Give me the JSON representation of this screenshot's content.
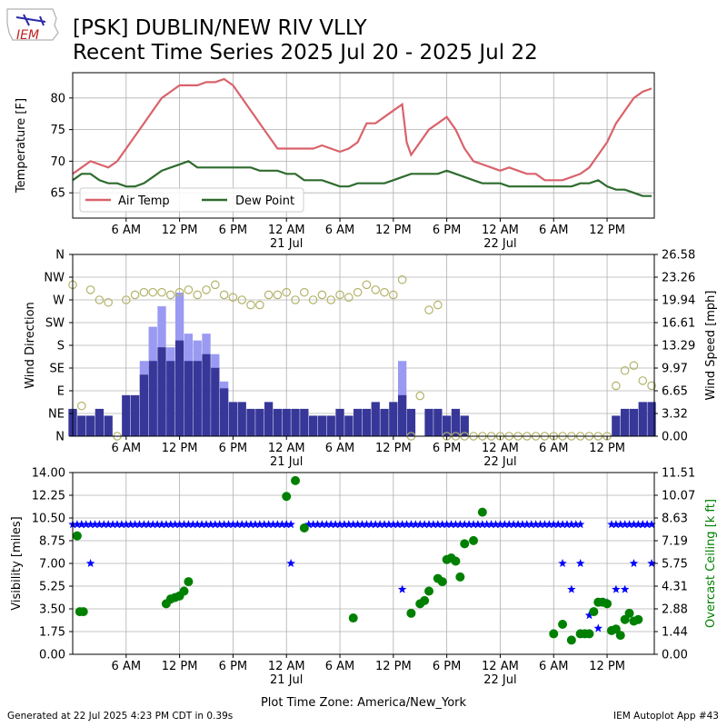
{
  "header": {
    "logo_text": "IEM",
    "title_line1": "[PSK] DUBLIN/NEW RIV VLLY",
    "title_line2": "Recent Time Series 2025 Jul 20 - 2025 Jul 22"
  },
  "footer": {
    "generated": "Generated at 22 Jul 2025 4:23 PM CDT in 0.39s",
    "app": "IEM Autoplot App #43"
  },
  "time_axis": {
    "ticks": [
      {
        "hour": 6,
        "label": "6 AM",
        "sub": ""
      },
      {
        "hour": 12,
        "label": "12 PM",
        "sub": ""
      },
      {
        "hour": 18,
        "label": "6 PM",
        "sub": ""
      },
      {
        "hour": 24,
        "label": "12 AM",
        "sub": "21 Jul"
      },
      {
        "hour": 30,
        "label": "6 AM",
        "sub": ""
      },
      {
        "hour": 36,
        "label": "12 PM",
        "sub": ""
      },
      {
        "hour": 42,
        "label": "6 PM",
        "sub": ""
      },
      {
        "hour": 48,
        "label": "12 AM",
        "sub": "22 Jul"
      },
      {
        "hour": 54,
        "label": "6 AM",
        "sub": ""
      },
      {
        "hour": 60,
        "label": "12 PM",
        "sub": ""
      }
    ],
    "xlim": [
      0,
      65.3
    ],
    "xlabel": "Plot Time Zone: America/New_York"
  },
  "colors": {
    "air_temp": "#d9626b",
    "dew_point": "#2e6b2e",
    "wind_gust": "#9a9af2",
    "wind_speed": "#373799",
    "wind_dir": "#b3b36b",
    "visibility": "#0000ff",
    "ceiling": "#008000",
    "ceiling_axis_label": "#008000"
  },
  "chart_data": [
    {
      "type": "line",
      "ylabel": "Temperature [F]",
      "ylim": [
        61,
        84
      ],
      "yticks": [
        65,
        70,
        75,
        80
      ],
      "grid": true,
      "legend_position": "lower-left",
      "series": [
        {
          "name": "Air Temp",
          "points": [
            [
              0,
              68
            ],
            [
              1,
              69
            ],
            [
              2,
              70
            ],
            [
              3,
              69.5
            ],
            [
              4,
              69
            ],
            [
              5,
              70
            ],
            [
              6,
              72
            ],
            [
              7,
              74
            ],
            [
              8,
              76
            ],
            [
              9,
              78
            ],
            [
              10,
              80
            ],
            [
              11,
              81
            ],
            [
              12,
              82
            ],
            [
              13,
              82
            ],
            [
              14,
              82
            ],
            [
              15,
              82.5
            ],
            [
              16,
              82.5
            ],
            [
              17,
              83
            ],
            [
              18,
              82
            ],
            [
              19,
              80
            ],
            [
              20,
              78
            ],
            [
              21,
              76
            ],
            [
              22,
              74
            ],
            [
              23,
              72
            ],
            [
              24,
              72
            ],
            [
              25,
              72
            ],
            [
              26,
              72
            ],
            [
              27,
              72
            ],
            [
              28,
              72.5
            ],
            [
              29,
              72
            ],
            [
              30,
              71.5
            ],
            [
              31,
              72
            ],
            [
              32,
              73
            ],
            [
              33,
              76
            ],
            [
              34,
              76
            ],
            [
              35,
              77
            ],
            [
              36,
              78
            ],
            [
              37,
              79
            ],
            [
              37.5,
              73
            ],
            [
              38,
              71
            ],
            [
              39,
              73
            ],
            [
              40,
              75
            ],
            [
              41,
              76
            ],
            [
              42,
              77
            ],
            [
              43,
              75
            ],
            [
              44,
              72
            ],
            [
              45,
              70
            ],
            [
              46,
              69.5
            ],
            [
              47,
              69
            ],
            [
              48,
              68.5
            ],
            [
              49,
              69
            ],
            [
              50,
              68.5
            ],
            [
              51,
              68
            ],
            [
              52,
              68
            ],
            [
              53,
              67
            ],
            [
              54,
              67
            ],
            [
              55,
              67
            ],
            [
              56,
              67.5
            ],
            [
              57,
              68
            ],
            [
              58,
              69
            ],
            [
              59,
              71
            ],
            [
              60,
              73
            ],
            [
              61,
              76
            ],
            [
              62,
              78
            ],
            [
              63,
              80
            ],
            [
              64,
              81
            ],
            [
              65,
              81.5
            ]
          ]
        },
        {
          "name": "Dew Point",
          "points": [
            [
              0,
              67
            ],
            [
              1,
              68
            ],
            [
              2,
              68
            ],
            [
              3,
              67
            ],
            [
              4,
              66.5
            ],
            [
              5,
              66.5
            ],
            [
              6,
              66
            ],
            [
              7,
              66
            ],
            [
              8,
              66.5
            ],
            [
              9,
              67.5
            ],
            [
              10,
              68.5
            ],
            [
              11,
              69
            ],
            [
              12,
              69.5
            ],
            [
              13,
              70
            ],
            [
              14,
              69
            ],
            [
              15,
              69
            ],
            [
              16,
              69
            ],
            [
              17,
              69
            ],
            [
              18,
              69
            ],
            [
              19,
              69
            ],
            [
              20,
              69
            ],
            [
              21,
              68.5
            ],
            [
              22,
              68.5
            ],
            [
              23,
              68.5
            ],
            [
              24,
              68
            ],
            [
              25,
              68
            ],
            [
              26,
              67
            ],
            [
              27,
              67
            ],
            [
              28,
              67
            ],
            [
              29,
              66.5
            ],
            [
              30,
              66
            ],
            [
              31,
              66
            ],
            [
              32,
              66.5
            ],
            [
              33,
              66.5
            ],
            [
              34,
              66.5
            ],
            [
              35,
              66.5
            ],
            [
              36,
              67
            ],
            [
              37,
              67.5
            ],
            [
              38,
              68
            ],
            [
              39,
              68
            ],
            [
              40,
              68
            ],
            [
              41,
              68
            ],
            [
              42,
              68.5
            ],
            [
              43,
              68
            ],
            [
              44,
              67.5
            ],
            [
              45,
              67
            ],
            [
              46,
              66.5
            ],
            [
              47,
              66.5
            ],
            [
              48,
              66.5
            ],
            [
              49,
              66
            ],
            [
              50,
              66
            ],
            [
              51,
              66
            ],
            [
              52,
              66
            ],
            [
              53,
              66
            ],
            [
              54,
              66
            ],
            [
              55,
              66
            ],
            [
              56,
              66
            ],
            [
              57,
              66.5
            ],
            [
              58,
              66.5
            ],
            [
              59,
              67
            ],
            [
              60,
              66
            ],
            [
              61,
              65.5
            ],
            [
              62,
              65.5
            ],
            [
              63,
              65
            ],
            [
              64,
              64.5
            ],
            [
              65,
              64.5
            ]
          ]
        }
      ]
    },
    {
      "type": "bar",
      "ylabel_left": "Wind Direction",
      "ylabel_right": "Wind Speed [mph]",
      "direction_ticks": [
        "N",
        "NE",
        "E",
        "SE",
        "S",
        "SW",
        "W",
        "NW",
        "N"
      ],
      "speed_ticks": [
        "0.00",
        "3.32",
        "6.65",
        "9.97",
        "13.29",
        "16.61",
        "19.94",
        "23.26",
        "26.58"
      ],
      "speed_ylim": [
        0,
        26.58
      ],
      "grid": true,
      "x_hours": [
        0,
        1,
        2,
        3,
        4,
        5,
        6,
        7,
        8,
        9,
        10,
        11,
        12,
        13,
        14,
        15,
        16,
        17,
        18,
        19,
        20,
        21,
        22,
        23,
        24,
        25,
        26,
        27,
        28,
        29,
        30,
        31,
        32,
        33,
        34,
        35,
        36,
        37,
        38,
        39,
        40,
        41,
        42,
        43,
        44,
        45,
        46,
        47,
        48,
        49,
        50,
        51,
        52,
        53,
        54,
        55,
        56,
        57,
        58,
        59,
        60,
        61,
        62,
        63,
        64,
        65
      ],
      "speed_mph": [
        4,
        3,
        3,
        4,
        3,
        0,
        6,
        6,
        9,
        11,
        13,
        11,
        14,
        11,
        11,
        12,
        10,
        7,
        5,
        5,
        4,
        4,
        5,
        4,
        4,
        4,
        4,
        3,
        3,
        3,
        4,
        3,
        4,
        4,
        5,
        4,
        5,
        6,
        4,
        0,
        4,
        4,
        3,
        4,
        3,
        0,
        0,
        0,
        0,
        0,
        0,
        0,
        0,
        0,
        0,
        0,
        0,
        0,
        0,
        0,
        0,
        3,
        4,
        4,
        5,
        5
      ],
      "gust_mph": [
        0,
        0,
        0,
        0,
        0,
        0,
        0,
        0,
        11,
        16,
        19,
        13,
        21,
        15,
        14,
        15,
        12,
        8,
        0,
        0,
        0,
        0,
        0,
        0,
        0,
        0,
        0,
        0,
        0,
        0,
        0,
        0,
        0,
        0,
        0,
        0,
        0,
        11,
        0,
        0,
        0,
        0,
        0,
        0,
        0,
        0,
        0,
        0,
        0,
        0,
        0,
        0,
        0,
        0,
        0,
        0,
        0,
        0,
        0,
        0,
        0,
        0,
        0,
        0,
        0,
        0
      ],
      "direction_deg": [
        300,
        60,
        290,
        270,
        265,
        0,
        270,
        280,
        285,
        285,
        285,
        280,
        285,
        290,
        280,
        290,
        300,
        280,
        275,
        270,
        260,
        260,
        280,
        280,
        285,
        270,
        285,
        270,
        280,
        270,
        280,
        275,
        285,
        300,
        290,
        285,
        280,
        310,
        0,
        80,
        250,
        260,
        0,
        0,
        0,
        0,
        0,
        0,
        0,
        0,
        0,
        0,
        0,
        0,
        0,
        0,
        0,
        0,
        0,
        0,
        0,
        100,
        130,
        140,
        110,
        100
      ]
    },
    {
      "type": "scatter",
      "ylabel_left": "Visibility [miles]",
      "ylabel_right": "Overcast Ceiling [k ft]",
      "vis_ticks": [
        "0.00",
        "1.75",
        "3.50",
        "5.25",
        "7.00",
        "8.75",
        "10.50",
        "12.25",
        "14.00"
      ],
      "ceil_ticks": [
        "0.00",
        "1.44",
        "2.88",
        "4.31",
        "5.75",
        "7.19",
        "8.63",
        "10.07",
        "11.51"
      ],
      "vis_ylim": [
        0,
        14
      ],
      "ceil_ylim": [
        0,
        11.51
      ],
      "grid": true,
      "visibility_points": [
        [
          1,
          10
        ],
        [
          2,
          7
        ],
        [
          24,
          10
        ],
        [
          24.5,
          7
        ],
        [
          37,
          5
        ],
        [
          55,
          7
        ],
        [
          56,
          5
        ],
        [
          57,
          7
        ],
        [
          58,
          3
        ],
        [
          59,
          2
        ],
        [
          60,
          4
        ],
        [
          61,
          5
        ],
        [
          62,
          5
        ],
        [
          63,
          7
        ],
        [
          64,
          10
        ],
        [
          65,
          7
        ]
      ],
      "visibility_10mi_hours": [
        [
          0,
          24.5
        ],
        [
          26.5,
          57
        ],
        [
          60.5,
          65.3
        ]
      ],
      "ceiling_points": [
        [
          0.5,
          7.5
        ],
        [
          0.8,
          2.7
        ],
        [
          1.2,
          2.7
        ],
        [
          10.5,
          3.2
        ],
        [
          11,
          3.5
        ],
        [
          11.5,
          3.6
        ],
        [
          12,
          3.7
        ],
        [
          12.5,
          4.0
        ],
        [
          13,
          4.6
        ],
        [
          24,
          10.0
        ],
        [
          25,
          11.0
        ],
        [
          26,
          8.0
        ],
        [
          31.5,
          2.3
        ],
        [
          38,
          2.6
        ],
        [
          39,
          3.2
        ],
        [
          39.5,
          3.4
        ],
        [
          40,
          4.0
        ],
        [
          41,
          4.8
        ],
        [
          41.5,
          4.6
        ],
        [
          42,
          6.0
        ],
        [
          42.5,
          6.1
        ],
        [
          43,
          5.9
        ],
        [
          43.5,
          4.9
        ],
        [
          44,
          7.0
        ],
        [
          45,
          7.2
        ],
        [
          46,
          9.0
        ],
        [
          54,
          1.3
        ],
        [
          55,
          1.9
        ],
        [
          56,
          0.9
        ],
        [
          57,
          1.3
        ],
        [
          57.5,
          1.3
        ],
        [
          58,
          1.3
        ],
        [
          58.5,
          2.7
        ],
        [
          59,
          3.3
        ],
        [
          59.5,
          3.3
        ],
        [
          60,
          3.2
        ],
        [
          60.5,
          1.5
        ],
        [
          61,
          1.6
        ],
        [
          61.5,
          1.2
        ],
        [
          62,
          2.2
        ],
        [
          62.5,
          2.6
        ],
        [
          63,
          2.1
        ],
        [
          63.5,
          2.2
        ]
      ]
    }
  ]
}
